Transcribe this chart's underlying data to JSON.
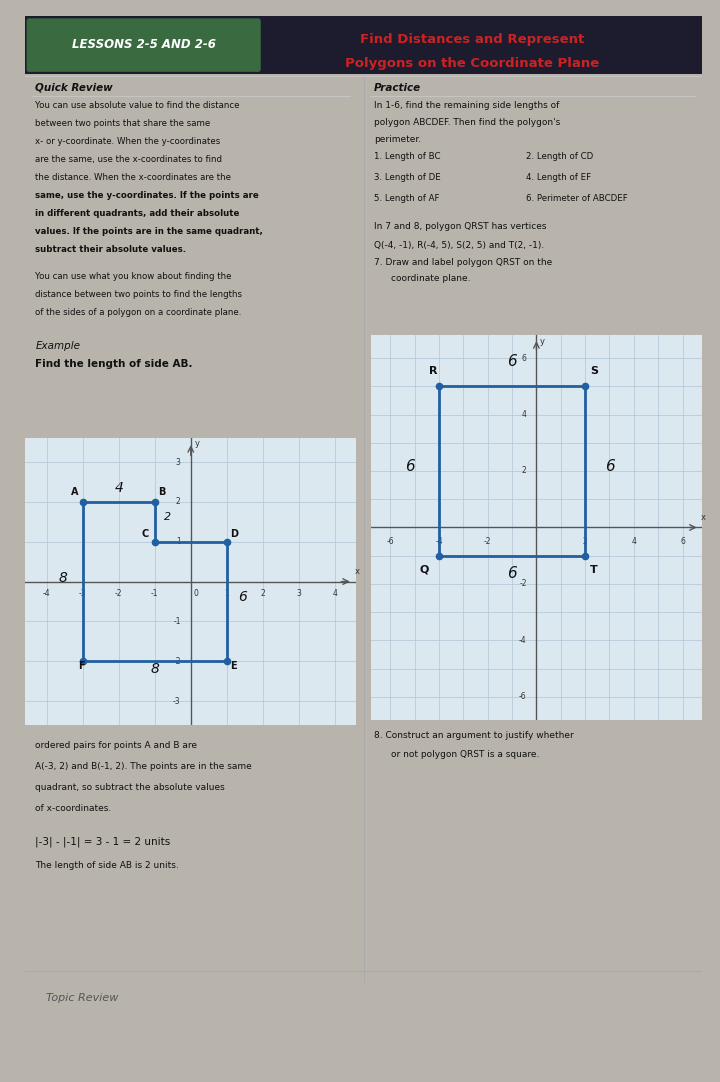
{
  "title_lesson": "LESSONS 2-5 AND 2-6",
  "title_main1": "Find Distances and Represent",
  "title_main2": "Polygons on the Coordinate Plane",
  "section_left_title": "Quick Review",
  "section_right_title": "Practice",
  "quick_review_bold": [
    "You can use absolute value to find the distance",
    "between two points that share the same",
    "x- or y-coordinate. When the y-coordinates",
    "are the same, use the x-coordinates to find",
    "the distance. When the x-coordinates are the",
    "same, use the y-coordinates. If the points are",
    "in different quadrants, add their absolute",
    "values. If the points are in the same quadrant,",
    "subtract their absolute values."
  ],
  "quick_review_text2": [
    "You can use what you know about finding the",
    "distance between two points to find the lengths",
    "of the sides of a polygon on a coordinate plane."
  ],
  "example_title": "Example",
  "example_subtitle": "Find the length of side AB.",
  "practice_text1": "In 1-6, find the remaining side lengths of",
  "practice_text2": "polygon ABCDEF. Then find the polygon's",
  "practice_text3": "perimeter.",
  "practice_items_left": [
    "1. Length of BC",
    "3. Length of DE",
    "5. Length of AF"
  ],
  "practice_items_right": [
    "2. Length of CD",
    "4. Length of EF",
    "6. Perimeter of ABCDEF"
  ],
  "polygon7_text1": "In 7 and 8, polygon QRST has vertices",
  "polygon7_text2": "Q(-4, -1), R(-4, 5), S(2, 5) and T(2, -1).",
  "polygon7_text3": "7. Draw and label polygon QRST on the",
  "polygon7_text4": "coordinate plane.",
  "below_example_text": [
    "ordered pairs for points A and B are",
    "A(-3, 2) and B(-1, 2). The points are in the same",
    "quadrant, so subtract the absolute values",
    "of x-coordinates."
  ],
  "formula_text": "|-3| - |-1| = 3 - 1 = 2 units",
  "conclusion_text": "The length of side AB is 2 units.",
  "construct_text1": "8. Construct an argument to justify whether",
  "construct_text2": "or not polygon QRST is a square.",
  "topic_review": "Topic Review",
  "page_bg": "#e8e4dc",
  "header_dark": "#1c1c2e",
  "header_green": "#3a6b40",
  "title_red": "#cc2222",
  "text_dark": "#111111",
  "text_gray": "#444444",
  "grid_bg": "#dce8f0",
  "grid_line": "#b0c4d4",
  "poly_color": "#2060a0",
  "divider_color": "#aaaaaa"
}
